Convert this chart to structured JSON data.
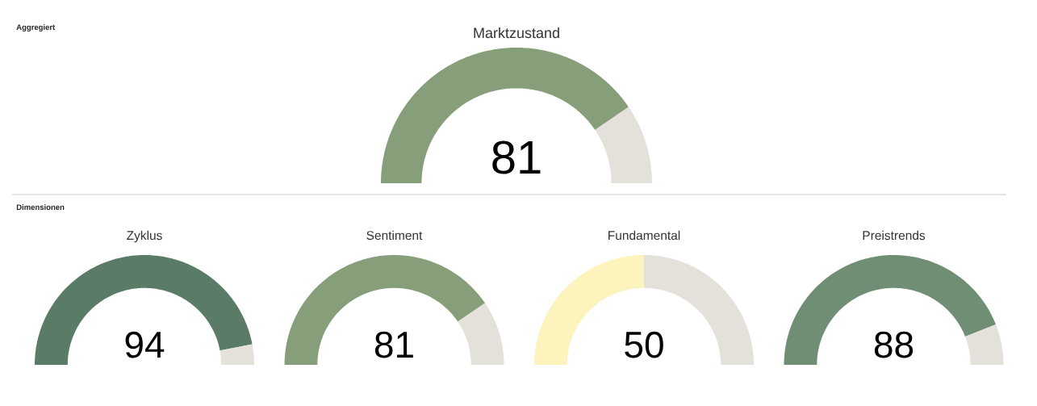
{
  "chart_data": [
    {
      "type": "donut",
      "title": "Marktzustand",
      "categories": [
        null,
        null
      ],
      "values": [
        81,
        19
      ],
      "colors": [
        "#879e7b",
        "#e4e0da"
      ],
      "value_labels": [
        "81",
        null
      ],
      "annotations": [
        "Aggregiert"
      ]
    },
    {
      "type": "donut",
      "title": "Zyklus",
      "categories": [
        null,
        null
      ],
      "values": [
        94,
        6
      ],
      "colors": [
        "#5a7b65",
        "#e4e0da"
      ],
      "value_labels": [
        "94",
        null
      ],
      "annotations": [
        "Dimensionen"
      ]
    },
    {
      "type": "donut",
      "title": "Sentiment",
      "categories": [
        null,
        null
      ],
      "values": [
        81,
        19
      ],
      "colors": [
        "#879e7b",
        "#e4e0da"
      ],
      "value_labels": [
        "81",
        null
      ]
    },
    {
      "type": "donut",
      "title": "Fundamental",
      "categories": [
        null,
        null
      ],
      "values": [
        50,
        50
      ],
      "colors": [
        "#fdf4bd",
        "#e4e0da"
      ],
      "value_labels": [
        "50",
        null
      ]
    },
    {
      "type": "donut",
      "title": "Preistrends",
      "categories": [
        null,
        null
      ],
      "values": [
        88,
        12
      ],
      "colors": [
        "#6f8e73",
        "#e4e0da"
      ],
      "value_labels": [
        "88",
        null
      ]
    }
  ]
}
